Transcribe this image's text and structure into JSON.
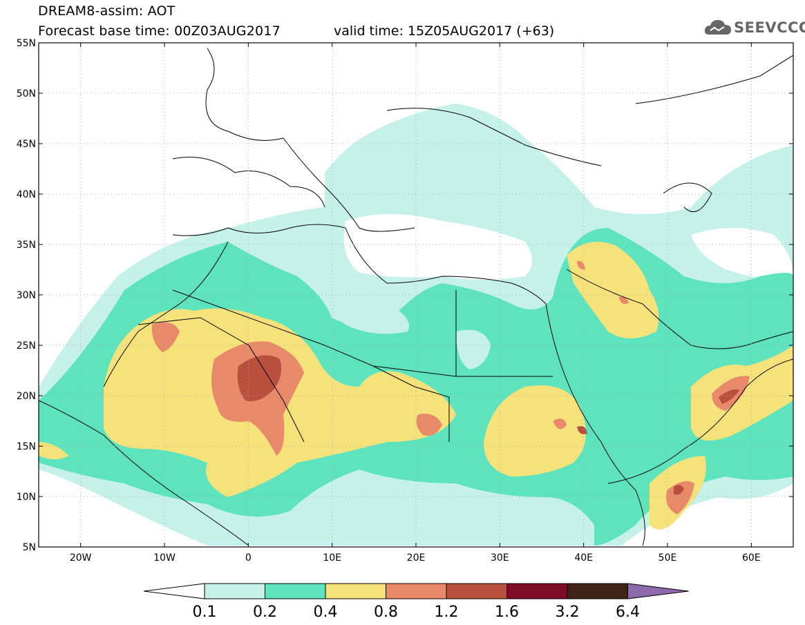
{
  "header": {
    "title": "DREAM8-assim: AOT",
    "base_time": "Forecast base time: 00Z03AUG2017",
    "valid_time": "valid time: 15Z05AUG2017 (+63)"
  },
  "logo": {
    "text": "SEEVCCC",
    "icon": "cloud-icon"
  },
  "map": {
    "lon_range": [
      -25,
      65
    ],
    "lat_range": [
      5,
      55
    ],
    "lat_ticks": [
      {
        "value": 55,
        "label": "55N"
      },
      {
        "value": 50,
        "label": "50N"
      },
      {
        "value": 45,
        "label": "45N"
      },
      {
        "value": 40,
        "label": "40N"
      },
      {
        "value": 35,
        "label": "35N"
      },
      {
        "value": 30,
        "label": "30N"
      },
      {
        "value": 25,
        "label": "25N"
      },
      {
        "value": 20,
        "label": "20N"
      },
      {
        "value": 15,
        "label": "15N"
      },
      {
        "value": 10,
        "label": "10N"
      },
      {
        "value": 5,
        "label": "5N"
      }
    ],
    "lon_ticks": [
      {
        "value": -20,
        "label": "20W"
      },
      {
        "value": -10,
        "label": "10W"
      },
      {
        "value": 0,
        "label": "0"
      },
      {
        "value": 10,
        "label": "10E"
      },
      {
        "value": 20,
        "label": "20E"
      },
      {
        "value": 30,
        "label": "30E"
      },
      {
        "value": 40,
        "label": "40E"
      },
      {
        "value": 50,
        "label": "50E"
      },
      {
        "value": 60,
        "label": "60E"
      }
    ],
    "grid": "dotted"
  },
  "colorbar": {
    "levels": [
      "0.1",
      "0.2",
      "0.4",
      "0.8",
      "1.2",
      "1.6",
      "3.2",
      "6.4"
    ],
    "colors": [
      "#ffffff",
      "#c6f1ea",
      "#5de3bd",
      "#f6e27a",
      "#e8896a",
      "#b8503d",
      "#7e0a26",
      "#3e2415",
      "#8e6aac"
    ]
  }
}
